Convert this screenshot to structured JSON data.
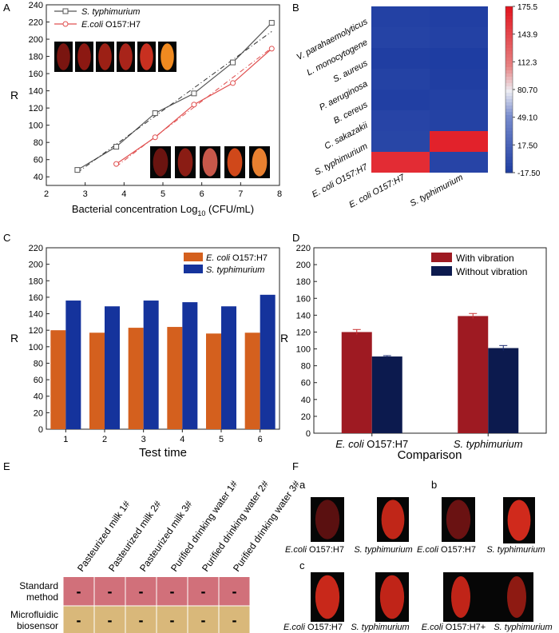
{
  "chart_data": [
    {
      "panel": "A",
      "type": "line",
      "xlabel_main": "Bacterial concentration Log",
      "xlabel_sub": "10",
      "xlabel_tail": " (CFU/mL)",
      "ylabel": "R",
      "xlim": [
        2,
        8
      ],
      "ylim": [
        30,
        240
      ],
      "xticks": [
        "2",
        "3",
        "4",
        "5",
        "6",
        "7",
        "8"
      ],
      "yticks": [
        "40",
        "60",
        "80",
        "100",
        "120",
        "140",
        "160",
        "180",
        "200",
        "220",
        "240"
      ],
      "series": [
        {
          "name_italic": "S. typhimurium",
          "name_plain": "",
          "color": "#555555",
          "marker": "square",
          "x": [
            2.8,
            3.8,
            4.8,
            5.8,
            6.8,
            7.8
          ],
          "y": [
            48,
            75,
            114,
            137,
            173,
            219
          ],
          "fit": [
            [
              2.8,
              45
            ],
            [
              7.8,
              209
            ]
          ]
        },
        {
          "name_italic": "E.coli",
          "name_plain": " O157:H7",
          "color": "#e05050",
          "marker": "circle",
          "x": [
            3.8,
            4.8,
            5.8,
            6.8,
            7.8
          ],
          "y": [
            55,
            86,
            124,
            149,
            189
          ],
          "fit": [
            [
              3.8,
              52
            ],
            [
              7.8,
              190
            ]
          ]
        }
      ]
    },
    {
      "panel": "B",
      "type": "heatmap",
      "rows": [
        "V. parahaemolyticus",
        "L. monocytogene",
        "S. aureus",
        "P. aeruginosa",
        "B. cereus",
        "C. sakazakii",
        "S. typhimurium",
        "E. coli O157:H7"
      ],
      "cols": [
        "E. coli O157:H7",
        "S. typhimurium"
      ],
      "values": [
        [
          -12,
          -13
        ],
        [
          -10,
          -12
        ],
        [
          -14,
          -15
        ],
        [
          -11,
          -14
        ],
        [
          -13,
          -12
        ],
        [
          -9,
          -11
        ],
        [
          -8,
          168
        ],
        [
          162,
          -9
        ]
      ],
      "scale_labels": [
        "175.5",
        "143.9",
        "112.3",
        "80.70",
        "49.10",
        "17.50",
        "-17.50"
      ],
      "scale_range": [
        -17.5,
        175.5
      ]
    },
    {
      "panel": "C",
      "type": "bar",
      "xlabel": "Test time",
      "ylabel": "R",
      "categories": [
        "1",
        "2",
        "3",
        "4",
        "5",
        "6"
      ],
      "ylim": [
        0,
        220
      ],
      "yticks": [
        "0",
        "20",
        "40",
        "60",
        "80",
        "100",
        "120",
        "140",
        "160",
        "180",
        "200",
        "220"
      ],
      "series": [
        {
          "name_italic": "E. coli",
          "name_plain": " O157:H7",
          "color": "#d4601e",
          "values": [
            120,
            117,
            123,
            124,
            116,
            117
          ]
        },
        {
          "name_italic": "S. typhimurium",
          "name_plain": "",
          "color": "#15339c",
          "values": [
            156,
            149,
            156,
            154,
            149,
            163
          ]
        }
      ]
    },
    {
      "panel": "D",
      "type": "bar",
      "xlabel": "Comparison",
      "ylabel": "R",
      "categories": [
        {
          "italic": "E. coli",
          "plain": " O157:H7"
        },
        {
          "italic": "S. typhimurium",
          "plain": ""
        }
      ],
      "ylim": [
        0,
        220
      ],
      "yticks": [
        "0",
        "20",
        "40",
        "60",
        "80",
        "100",
        "120",
        "140",
        "160",
        "180",
        "200",
        "220"
      ],
      "series": [
        {
          "name": "With vibration",
          "color": "#9e1a22",
          "values": [
            120,
            139
          ],
          "errors": [
            3,
            3
          ]
        },
        {
          "name": "Without vibration",
          "color": "#0c1a4e",
          "values": [
            91,
            101
          ],
          "errors": [
            1,
            3
          ]
        }
      ]
    },
    {
      "panel": "E",
      "type": "table",
      "columns": [
        "Pasteurized milk 1#",
        "Pasteurized milk 2#",
        "Pasteurized milk 3#",
        "Purified drinking water 1#",
        "Purified drinking water 2#",
        "Purified drinking water 3#"
      ],
      "rows": [
        {
          "label_line1": "Standard",
          "label_line2": "method",
          "color": "#d1707a",
          "cells": [
            "-",
            "-",
            "-",
            "-",
            "-",
            "-"
          ]
        },
        {
          "label_line1": "Microfluidic",
          "label_line2": "biosensor",
          "color": "#d9b87a",
          "cells": [
            "-",
            "-",
            "-",
            "-",
            "-",
            "-"
          ]
        }
      ]
    }
  ],
  "panel_letters": {
    "a": "A",
    "b": "B",
    "c": "C",
    "d": "D",
    "e": "E",
    "f": "F"
  },
  "panel_f": {
    "sub_a": "a",
    "sub_b": "b",
    "sub_c": "c",
    "captions": [
      {
        "italic": "E.coli",
        "plain": " O157:H7"
      },
      {
        "italic": "S. typhimurium",
        "plain": ""
      },
      {
        "italic": "E.coli",
        "plain": " O157:H7"
      },
      {
        "italic": "S. typhimurium",
        "plain": ""
      },
      {
        "italic": "E.coli",
        "plain": " O157:H7"
      },
      {
        "italic": "S. typhimurium",
        "plain": ""
      },
      {
        "italic": "E.coli",
        "plain": " O157:H7+"
      },
      {
        "italic": "S. typhimurium",
        "plain": ""
      }
    ]
  }
}
